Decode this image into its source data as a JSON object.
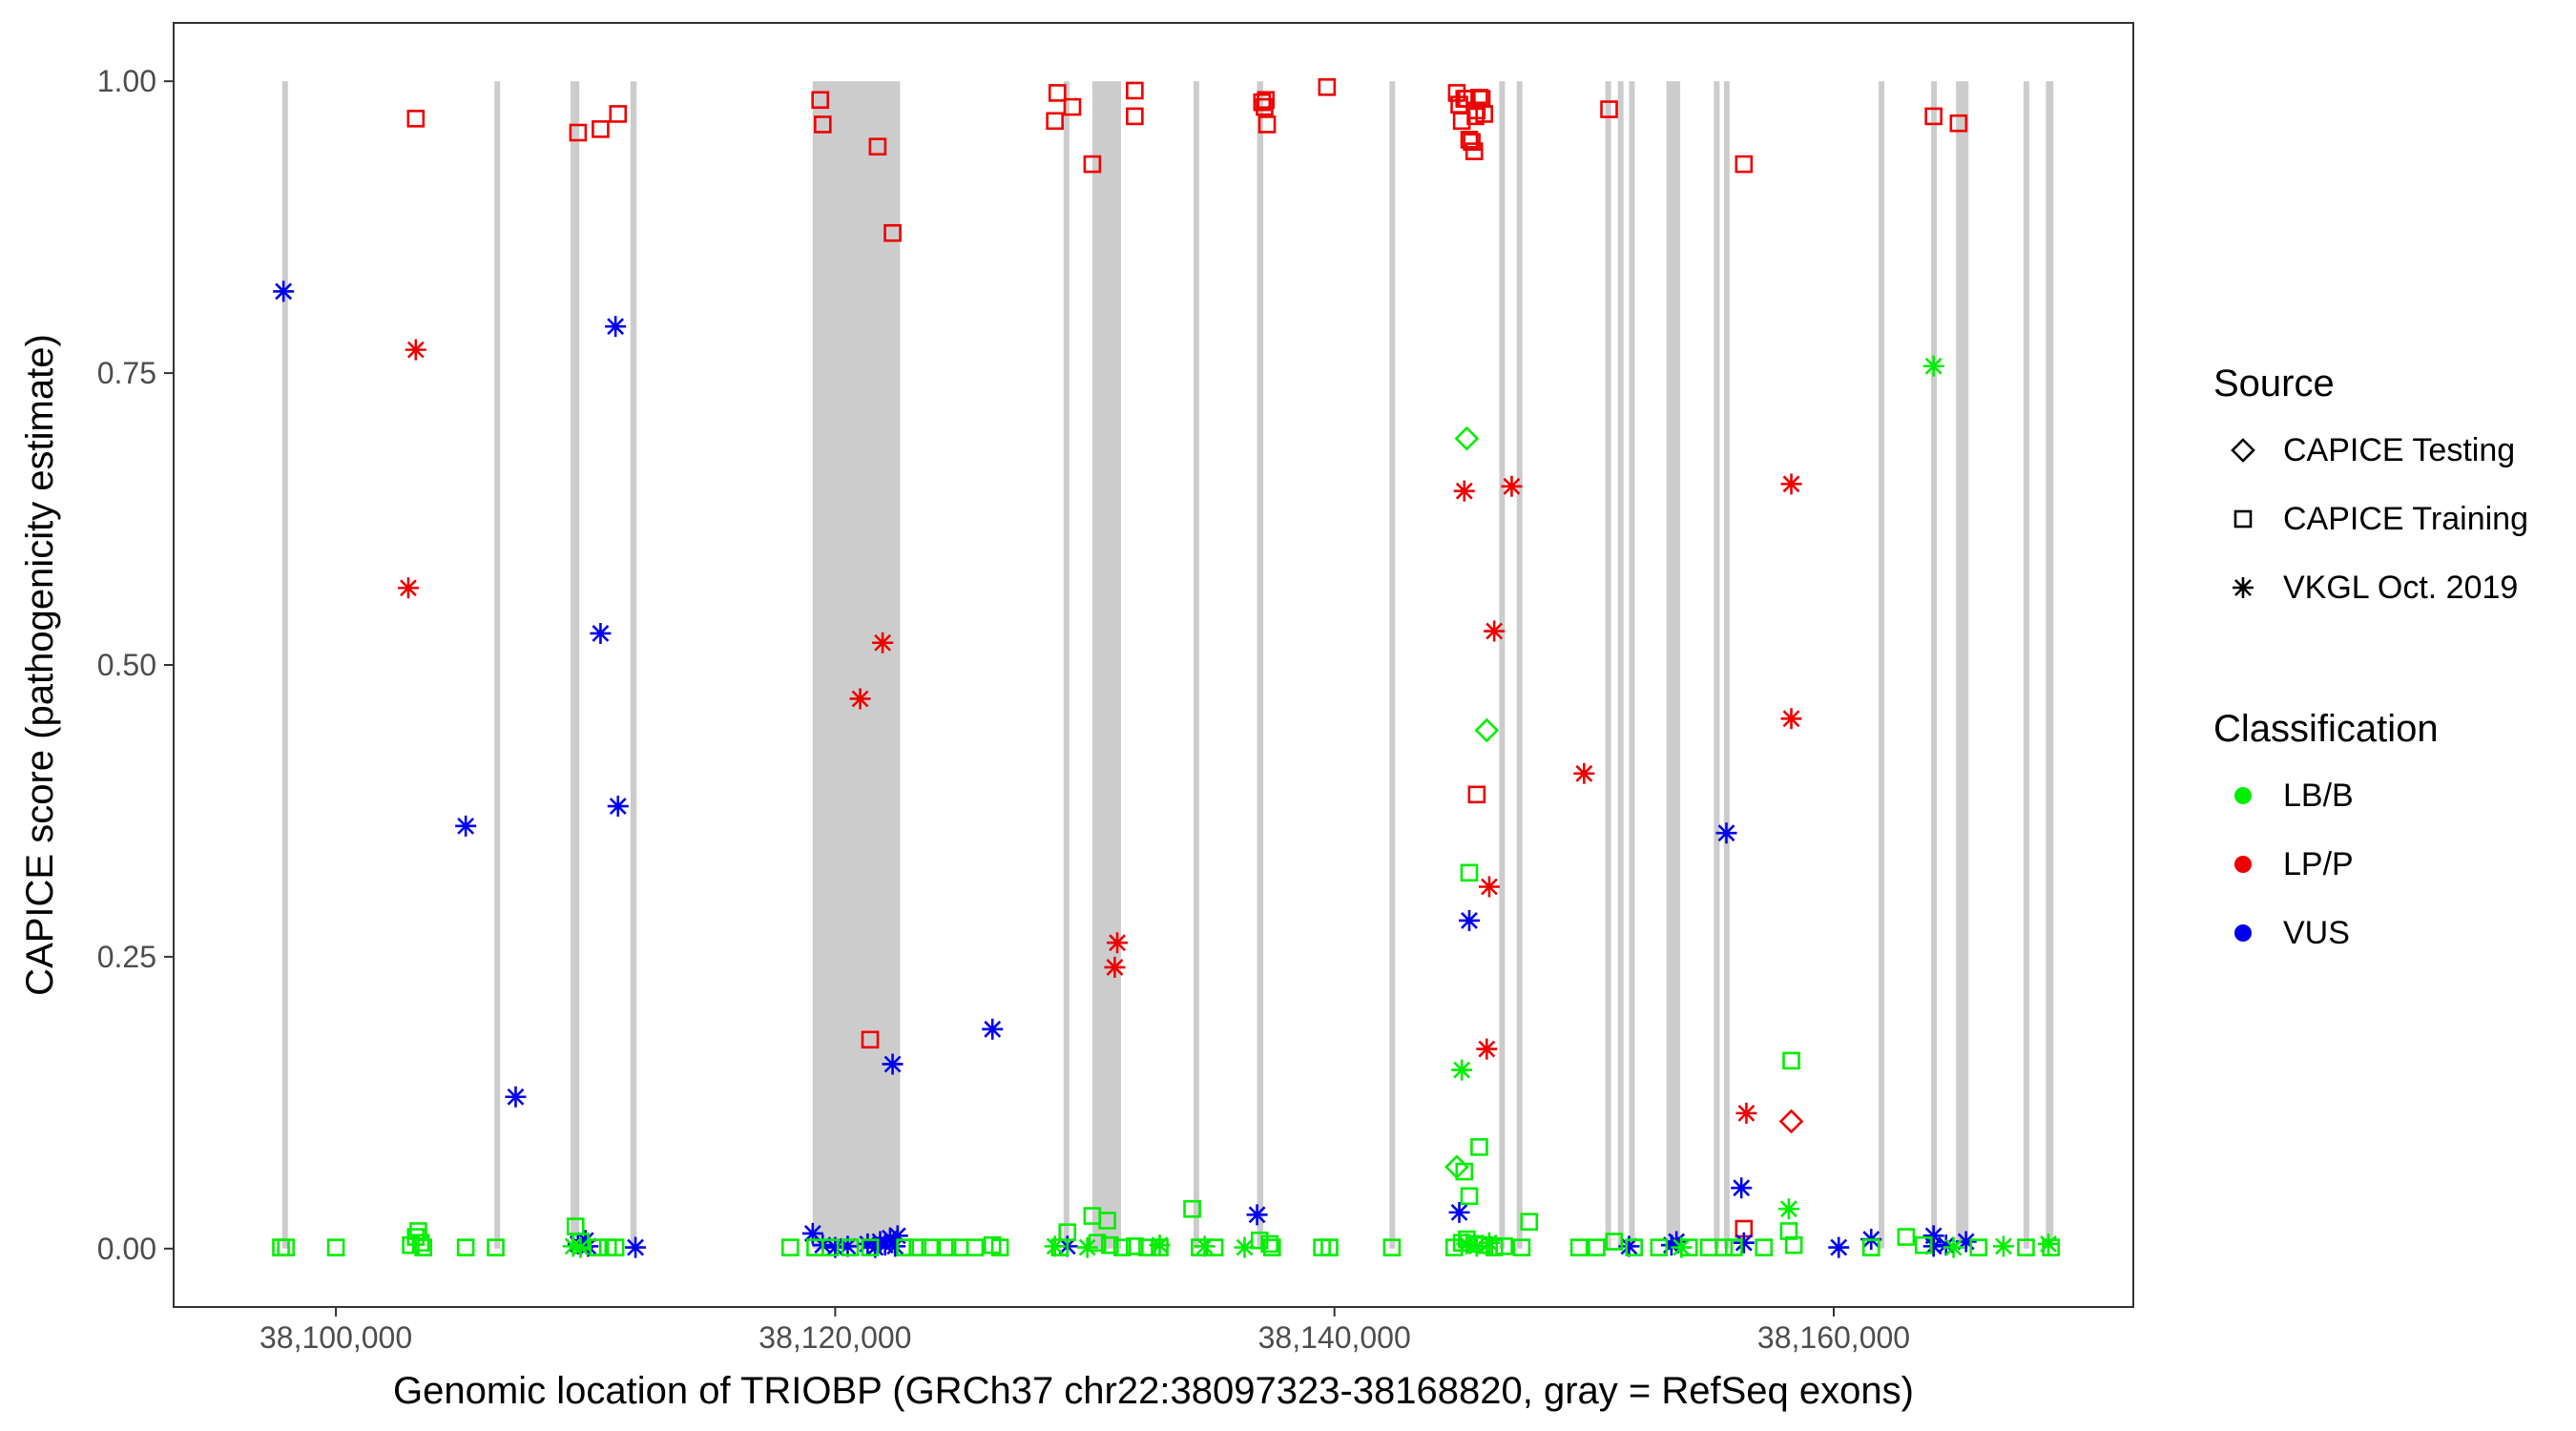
{
  "chart_data": {
    "type": "scatter",
    "title": "",
    "xlabel": "Genomic location of TRIOBP (GRCh37 chr22:38097323-38168820, gray = RefSeq exons)",
    "ylabel": "CAPICE score (pathogenicity estimate)",
    "xlim": [
      38093500,
      38172000
    ],
    "ylim": [
      -0.05,
      1.05
    ],
    "x_ticks": [
      38100000,
      38120000,
      38140000,
      38160000
    ],
    "x_tick_labels": [
      "38,100,000",
      "38,120,000",
      "38,140,000",
      "38,160,000"
    ],
    "y_ticks": [
      0,
      0.25,
      0.5,
      0.75,
      1.0
    ],
    "y_tick_labels": [
      "0.00",
      "0.25",
      "0.50",
      "0.75",
      "1.00"
    ],
    "grid": false,
    "colors": {
      "LB/B": "#00ee00",
      "LP/P": "#ee0000",
      "VUS": "#0000ee",
      "exon": "#cccccc"
    },
    "exons": [
      [
        38097850,
        38098000
      ],
      [
        38106350,
        38106550
      ],
      [
        38109400,
        38109750
      ],
      [
        38111800,
        38112050
      ],
      [
        38119100,
        38122600
      ],
      [
        38129150,
        38129350
      ],
      [
        38130300,
        38131450
      ],
      [
        38134350,
        38134550
      ],
      [
        38136900,
        38137150
      ],
      [
        38142200,
        38142400
      ],
      [
        38146600,
        38146800
      ],
      [
        38147300,
        38147500
      ],
      [
        38150850,
        38151050
      ],
      [
        38151350,
        38151550
      ],
      [
        38151800,
        38152000
      ],
      [
        38153300,
        38153850
      ],
      [
        38155200,
        38155400
      ],
      [
        38155600,
        38155800
      ],
      [
        38161800,
        38162000
      ],
      [
        38163900,
        38164100
      ],
      [
        38164900,
        38165400
      ],
      [
        38167600,
        38167800
      ],
      [
        38168500,
        38168800
      ]
    ],
    "legend": {
      "position": "right",
      "source_title": "Source",
      "source_items": [
        {
          "label": "CAPICE Testing",
          "shape": "diamond"
        },
        {
          "label": "CAPICE Training",
          "shape": "square"
        },
        {
          "label": "VKGL Oct. 2019",
          "shape": "star"
        }
      ],
      "class_title": "Classification",
      "class_items": [
        {
          "label": "LB/B",
          "class": "LB/B"
        },
        {
          "label": "LP/P",
          "class": "LP/P"
        },
        {
          "label": "VUS",
          "class": "VUS"
        }
      ]
    },
    "series": [
      {
        "name": "LP/P - CAPICE Training",
        "class": "LP/P",
        "shape": "square",
        "points": [
          [
            38103200,
            0.968
          ],
          [
            38109700,
            0.956
          ],
          [
            38110600,
            0.959
          ],
          [
            38111300,
            0.972
          ],
          [
            38119400,
            0.984
          ],
          [
            38119500,
            0.963
          ],
          [
            38121700,
            0.944
          ],
          [
            38122300,
            0.87
          ],
          [
            38121400,
            0.179
          ],
          [
            38128800,
            0.966
          ],
          [
            38128900,
            0.99
          ],
          [
            38129500,
            0.978
          ],
          [
            38130300,
            0.929
          ],
          [
            38132000,
            0.992
          ],
          [
            38132000,
            0.97
          ],
          [
            38137100,
            0.982
          ],
          [
            38137200,
            0.978
          ],
          [
            38137300,
            0.963
          ],
          [
            38137250,
            0.984
          ],
          [
            38139700,
            0.995
          ],
          [
            38144900,
            0.99
          ],
          [
            38145000,
            0.98
          ],
          [
            38145300,
            0.985
          ],
          [
            38145100,
            0.966
          ],
          [
            38145400,
            0.95
          ],
          [
            38145800,
            0.986
          ],
          [
            38145700,
            0.975
          ],
          [
            38145650,
            0.97
          ],
          [
            38146000,
            0.972
          ],
          [
            38145900,
            0.985
          ],
          [
            38145600,
            0.94
          ],
          [
            38145200,
            0.985
          ],
          [
            38145500,
            0.948
          ],
          [
            38145700,
            0.389
          ],
          [
            38151000,
            0.976
          ],
          [
            38156400,
            0.929
          ],
          [
            38156400,
            0.017
          ],
          [
            38164000,
            0.97
          ],
          [
            38165000,
            0.964
          ]
        ]
      },
      {
        "name": "LP/P - VKGL Oct. 2019",
        "class": "LP/P",
        "shape": "star",
        "points": [
          [
            38103200,
            0.77
          ],
          [
            38102900,
            0.566
          ],
          [
            38121000,
            0.471
          ],
          [
            38121900,
            0.519
          ],
          [
            38131300,
            0.262
          ],
          [
            38131200,
            0.241
          ],
          [
            38145200,
            0.649
          ],
          [
            38146400,
            0.529
          ],
          [
            38147100,
            0.653
          ],
          [
            38146200,
            0.31
          ],
          [
            38146100,
            0.171
          ],
          [
            38150000,
            0.407
          ],
          [
            38156500,
            0.116
          ],
          [
            38158300,
            0.655
          ],
          [
            38158300,
            0.454
          ]
        ]
      },
      {
        "name": "LP/P - CAPICE Testing",
        "class": "LP/P",
        "shape": "diamond",
        "points": [
          [
            38158300,
            0.109
          ]
        ]
      },
      {
        "name": "VUS - VKGL Oct. 2019",
        "class": "VUS",
        "shape": "star",
        "points": [
          [
            38097900,
            0.82
          ],
          [
            38105200,
            0.362
          ],
          [
            38107200,
            0.13
          ],
          [
            38110600,
            0.527
          ],
          [
            38111200,
            0.79
          ],
          [
            38111300,
            0.379
          ],
          [
            38109700,
            0.004
          ],
          [
            38110000,
            0.007
          ],
          [
            38110100,
            0.002
          ],
          [
            38112000,
            0.001
          ],
          [
            38119100,
            0.013
          ],
          [
            38119500,
            0.003
          ],
          [
            38120000,
            0.001
          ],
          [
            38120500,
            0.002
          ],
          [
            38121300,
            0.004
          ],
          [
            38121600,
            0.001
          ],
          [
            38121800,
            0.006
          ],
          [
            38122000,
            0.003
          ],
          [
            38122200,
            0.009
          ],
          [
            38122400,
            0.002
          ],
          [
            38122500,
            0.011
          ],
          [
            38122300,
            0.158
          ],
          [
            38126300,
            0.188
          ],
          [
            38129300,
            0.002
          ],
          [
            38136900,
            0.029
          ],
          [
            38145000,
            0.031
          ],
          [
            38145400,
            0.281
          ],
          [
            38151800,
            0.002
          ],
          [
            38153500,
            0.003
          ],
          [
            38153700,
            0.006
          ],
          [
            38155700,
            0.356
          ],
          [
            38156300,
            0.052
          ],
          [
            38156400,
            0.005
          ],
          [
            38160200,
            0.001
          ],
          [
            38161500,
            0.008
          ],
          [
            38164000,
            0.011
          ],
          [
            38164000,
            0.002
          ],
          [
            38164500,
            0.003
          ],
          [
            38165300,
            0.006
          ]
        ]
      },
      {
        "name": "LB/B - CAPICE Training",
        "class": "LB/B",
        "shape": "square",
        "points": [
          [
            38097800,
            0.001
          ],
          [
            38098000,
            0.001
          ],
          [
            38100000,
            0.001
          ],
          [
            38103000,
            0.003
          ],
          [
            38103200,
            0.01
          ],
          [
            38103500,
            0.001
          ],
          [
            38103300,
            0.015
          ],
          [
            38103400,
            0.005
          ],
          [
            38105200,
            0.001
          ],
          [
            38106400,
            0.001
          ],
          [
            38109600,
            0.019
          ],
          [
            38109800,
            0.006
          ],
          [
            38110500,
            0.001
          ],
          [
            38110900,
            0.001
          ],
          [
            38111200,
            0.001
          ],
          [
            38118200,
            0.001
          ],
          [
            38119200,
            0.001
          ],
          [
            38119800,
            0.001
          ],
          [
            38120600,
            0.001
          ],
          [
            38121400,
            0.001
          ],
          [
            38122800,
            0.001
          ],
          [
            38123300,
            0.001
          ],
          [
            38123800,
            0.001
          ],
          [
            38124500,
            0.001
          ],
          [
            38125000,
            0.001
          ],
          [
            38125600,
            0.001
          ],
          [
            38126300,
            0.003
          ],
          [
            38126600,
            0.001
          ],
          [
            38129000,
            0.001
          ],
          [
            38129300,
            0.014
          ],
          [
            38130300,
            0.028
          ],
          [
            38130900,
            0.024
          ],
          [
            38130500,
            0.005
          ],
          [
            38131000,
            0.003
          ],
          [
            38131500,
            0.001
          ],
          [
            38132000,
            0.002
          ],
          [
            38132500,
            0.001
          ],
          [
            38133000,
            0.001
          ],
          [
            38134300,
            0.034
          ],
          [
            38134600,
            0.001
          ],
          [
            38135200,
            0.001
          ],
          [
            38137000,
            0.007
          ],
          [
            38137400,
            0.004
          ],
          [
            38137500,
            0.001
          ],
          [
            38139500,
            0.001
          ],
          [
            38139800,
            0.001
          ],
          [
            38142300,
            0.001
          ],
          [
            38144800,
            0.001
          ],
          [
            38145100,
            0.005
          ],
          [
            38145300,
            0.008
          ],
          [
            38145400,
            0.045
          ],
          [
            38145200,
            0.066
          ],
          [
            38145800,
            0.087
          ],
          [
            38145400,
            0.322
          ],
          [
            38145600,
            0.004
          ],
          [
            38146000,
            0.003
          ],
          [
            38146400,
            0.001
          ],
          [
            38146800,
            0.002
          ],
          [
            38147500,
            0.001
          ],
          [
            38147800,
            0.023
          ],
          [
            38149800,
            0.001
          ],
          [
            38150500,
            0.001
          ],
          [
            38151200,
            0.006
          ],
          [
            38152000,
            0.001
          ],
          [
            38153000,
            0.001
          ],
          [
            38154200,
            0.001
          ],
          [
            38155000,
            0.001
          ],
          [
            38155600,
            0.001
          ],
          [
            38156000,
            0.001
          ],
          [
            38157200,
            0.001
          ],
          [
            38158200,
            0.015
          ],
          [
            38158300,
            0.161
          ],
          [
            38158400,
            0.003
          ],
          [
            38161500,
            0.001
          ],
          [
            38162900,
            0.01
          ],
          [
            38163600,
            0.003
          ],
          [
            38165800,
            0.001
          ],
          [
            38167700,
            0.001
          ],
          [
            38168700,
            0.001
          ]
        ]
      },
      {
        "name": "LB/B - VKGL Oct. 2019",
        "class": "LB/B",
        "shape": "star",
        "points": [
          [
            38109500,
            0.002
          ],
          [
            38109800,
            0.001
          ],
          [
            38128800,
            0.002
          ],
          [
            38130100,
            0.001
          ],
          [
            38133000,
            0.003
          ],
          [
            38134800,
            0.002
          ],
          [
            38136400,
            0.001
          ],
          [
            38145100,
            0.153
          ],
          [
            38145300,
            0.004
          ],
          [
            38145700,
            0.002
          ],
          [
            38146200,
            0.005
          ],
          [
            38153900,
            0.001
          ],
          [
            38158200,
            0.034
          ],
          [
            38164000,
            0.756
          ],
          [
            38166800,
            0.002
          ],
          [
            38168600,
            0.004
          ],
          [
            38164800,
            0.001
          ]
        ]
      },
      {
        "name": "LB/B - CAPICE Testing",
        "class": "LB/B",
        "shape": "diamond",
        "points": [
          [
            38145300,
            0.694
          ],
          [
            38146100,
            0.444
          ],
          [
            38144900,
            0.07
          ]
        ]
      }
    ]
  }
}
